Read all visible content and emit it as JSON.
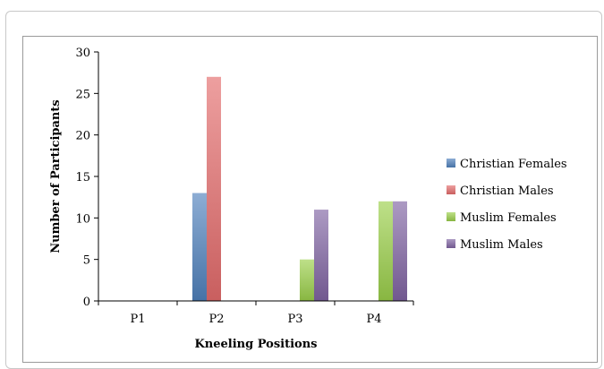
{
  "chart_data": {
    "type": "bar",
    "xlabel": "Kneeling Positions",
    "ylabel": "Number of Participants",
    "categories": [
      "P1",
      "P2",
      "P3",
      "P4"
    ],
    "ylim": [
      0,
      30
    ],
    "yticks": [
      0,
      5,
      10,
      15,
      20,
      25,
      30
    ],
    "grid": false,
    "legend_position": "right",
    "series": [
      {
        "name": "Christian Females",
        "color": "#4f81bd",
        "values": [
          0,
          13,
          0,
          0
        ]
      },
      {
        "name": "Christian Males",
        "color": "#e46c6c",
        "values": [
          0,
          27,
          0,
          0
        ]
      },
      {
        "name": "Muslim Females",
        "color": "#9bcf4a",
        "values": [
          0,
          0,
          5,
          12
        ]
      },
      {
        "name": "Muslim Males",
        "color": "#8064a2",
        "values": [
          0,
          0,
          11,
          12
        ]
      }
    ]
  }
}
